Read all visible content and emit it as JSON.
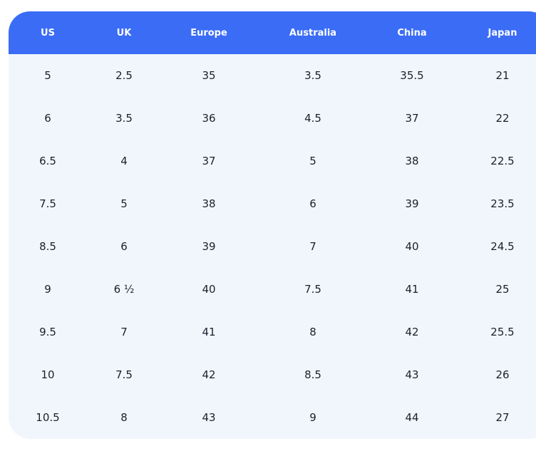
{
  "table": {
    "columns": [
      "US",
      "UK",
      "Europe",
      "Australia",
      "China",
      "Japan"
    ],
    "rows": [
      [
        "5",
        "2.5",
        "35",
        "3.5",
        "35.5",
        "21"
      ],
      [
        "6",
        "3.5",
        "36",
        "4.5",
        "37",
        "22"
      ],
      [
        "6.5",
        "4",
        "37",
        "5",
        "38",
        "22.5"
      ],
      [
        "7.5",
        "5",
        "38",
        "6",
        "39",
        "23.5"
      ],
      [
        "8.5",
        "6",
        "39",
        "7",
        "40",
        "24.5"
      ],
      [
        "9",
        "6 ½",
        "40",
        "7.5",
        "41",
        "25"
      ],
      [
        "9.5",
        "7",
        "41",
        "8",
        "42",
        "25.5"
      ],
      [
        "10",
        "7.5",
        "42",
        "8.5",
        "43",
        "26"
      ],
      [
        "10.5",
        "8",
        "43",
        "9",
        "44",
        "27"
      ]
    ]
  }
}
